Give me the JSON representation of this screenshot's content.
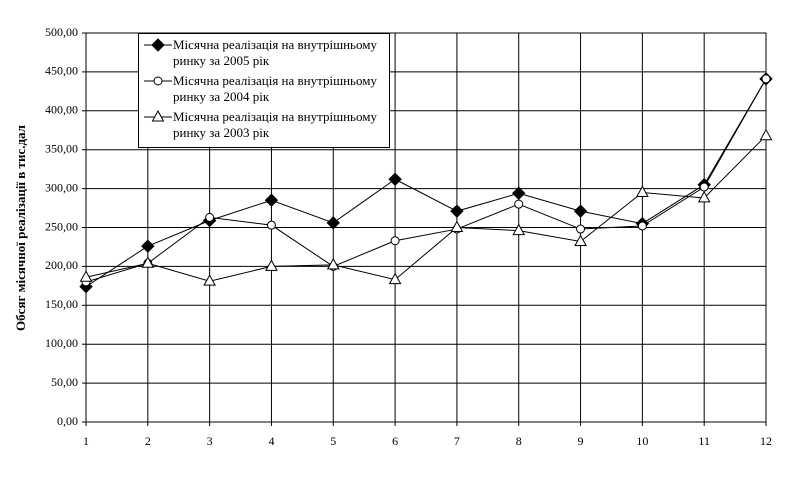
{
  "chart_data": {
    "type": "line",
    "y_label": "Обсяг місячної реалізації в тис.дал",
    "x": [
      1,
      2,
      3,
      4,
      5,
      6,
      7,
      8,
      9,
      10,
      11,
      12
    ],
    "xlim": [
      1,
      12
    ],
    "xticks": [
      1,
      2,
      3,
      4,
      5,
      6,
      7,
      8,
      9,
      10,
      11,
      12
    ],
    "ylim": [
      0,
      500
    ],
    "yticks": [
      {
        "value": 0,
        "label": "0,00"
      },
      {
        "value": 50,
        "label": "50,00"
      },
      {
        "value": 100,
        "label": "100,00"
      },
      {
        "value": 150,
        "label": "150,00"
      },
      {
        "value": 200,
        "label": "200,00"
      },
      {
        "value": 250,
        "label": "250,00"
      },
      {
        "value": 300,
        "label": "300,00"
      },
      {
        "value": 350,
        "label": "350,00"
      },
      {
        "value": 400,
        "label": "400,00"
      },
      {
        "value": 450,
        "label": "450,00"
      },
      {
        "value": 500,
        "label": "500,00"
      }
    ],
    "grid": true,
    "legend": "upper left",
    "series": [
      {
        "name": "Місячна реалізація на внутрішньому ринку за 2005 рік",
        "color": "#000000",
        "marker": "diamond",
        "values": [
          174,
          226,
          259,
          285,
          256,
          312,
          271,
          294,
          271,
          255,
          305,
          441
        ]
      },
      {
        "name": "Місячна реалізація на внутрішньому ринку за 2004 рік",
        "color": "#000000",
        "marker": "circle",
        "values": [
          180,
          204,
          263,
          253,
          200,
          233,
          248,
          280,
          248,
          252,
          302,
          441
        ]
      },
      {
        "name": "Місячна реалізація на внутрішньому ринку за 2003 рік",
        "color": "#000000",
        "marker": "triangle",
        "values": [
          186,
          204,
          181,
          200,
          202,
          183,
          250,
          246,
          232,
          295,
          288,
          368
        ]
      }
    ]
  }
}
